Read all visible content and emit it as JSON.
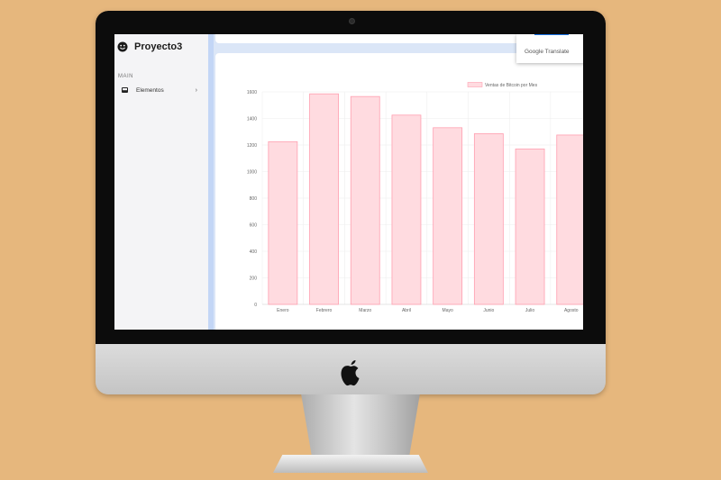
{
  "app": {
    "title": "Proyecto3",
    "section_label": "MAIN",
    "nav_items": [
      {
        "label": "Elementos",
        "icon": "inbox-icon"
      }
    ]
  },
  "popup": {
    "text": "Google Translate"
  },
  "colors": {
    "background": "#e6b77d",
    "bar_fill": "#ffdbe0",
    "bar_stroke": "#ff9fb0",
    "sidebar": "#f4f4f6",
    "screen_accent": "#c3d6f6"
  },
  "chart_data": {
    "type": "bar",
    "categories": [
      "Enero",
      "Febrero",
      "Marzo",
      "Abril",
      "Mayo",
      "Junio",
      "Julio",
      "Agosto"
    ],
    "series": [
      {
        "name": "Ventas de Bitcoin por Mes",
        "values": [
          1225,
          1585,
          1565,
          1425,
          1330,
          1285,
          1170,
          1275
        ]
      }
    ],
    "ylim": [
      0,
      1600
    ],
    "yticks": [
      0,
      200,
      400,
      600,
      800,
      1000,
      1200,
      1400,
      1600
    ],
    "legend": "top",
    "grid": true
  }
}
